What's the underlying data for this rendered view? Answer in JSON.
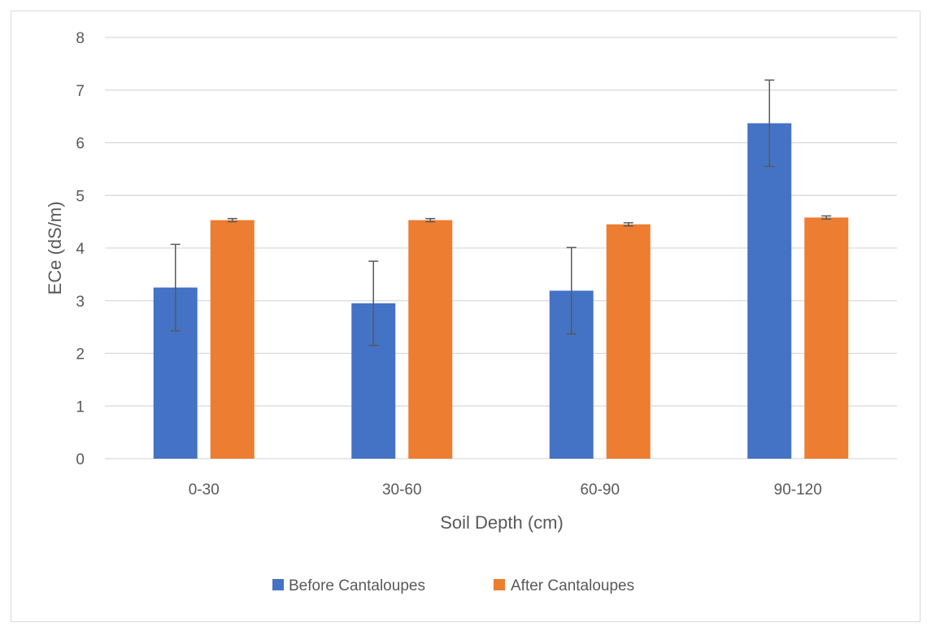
{
  "chart_data": {
    "type": "bar",
    "title": "",
    "xlabel": "Soil Depth (cm)",
    "ylabel": "ECe (dS/m)",
    "ylim": [
      0,
      8
    ],
    "yticks": [
      0,
      1,
      2,
      3,
      4,
      5,
      6,
      7,
      8
    ],
    "grid": true,
    "legend_position": "bottom",
    "categories": [
      "0-30",
      "30-60",
      "60-90",
      "90-120"
    ],
    "series": [
      {
        "name": "Before Cantaloupes",
        "color": "#4472c4",
        "values": [
          3.25,
          2.95,
          3.19,
          6.37
        ],
        "error": [
          0.82,
          0.8,
          0.82,
          0.82
        ]
      },
      {
        "name": "After Cantaloupes",
        "color": "#ed7d31",
        "values": [
          4.53,
          4.53,
          4.45,
          4.58
        ],
        "error": [
          0.03,
          0.03,
          0.03,
          0.03
        ]
      }
    ]
  }
}
